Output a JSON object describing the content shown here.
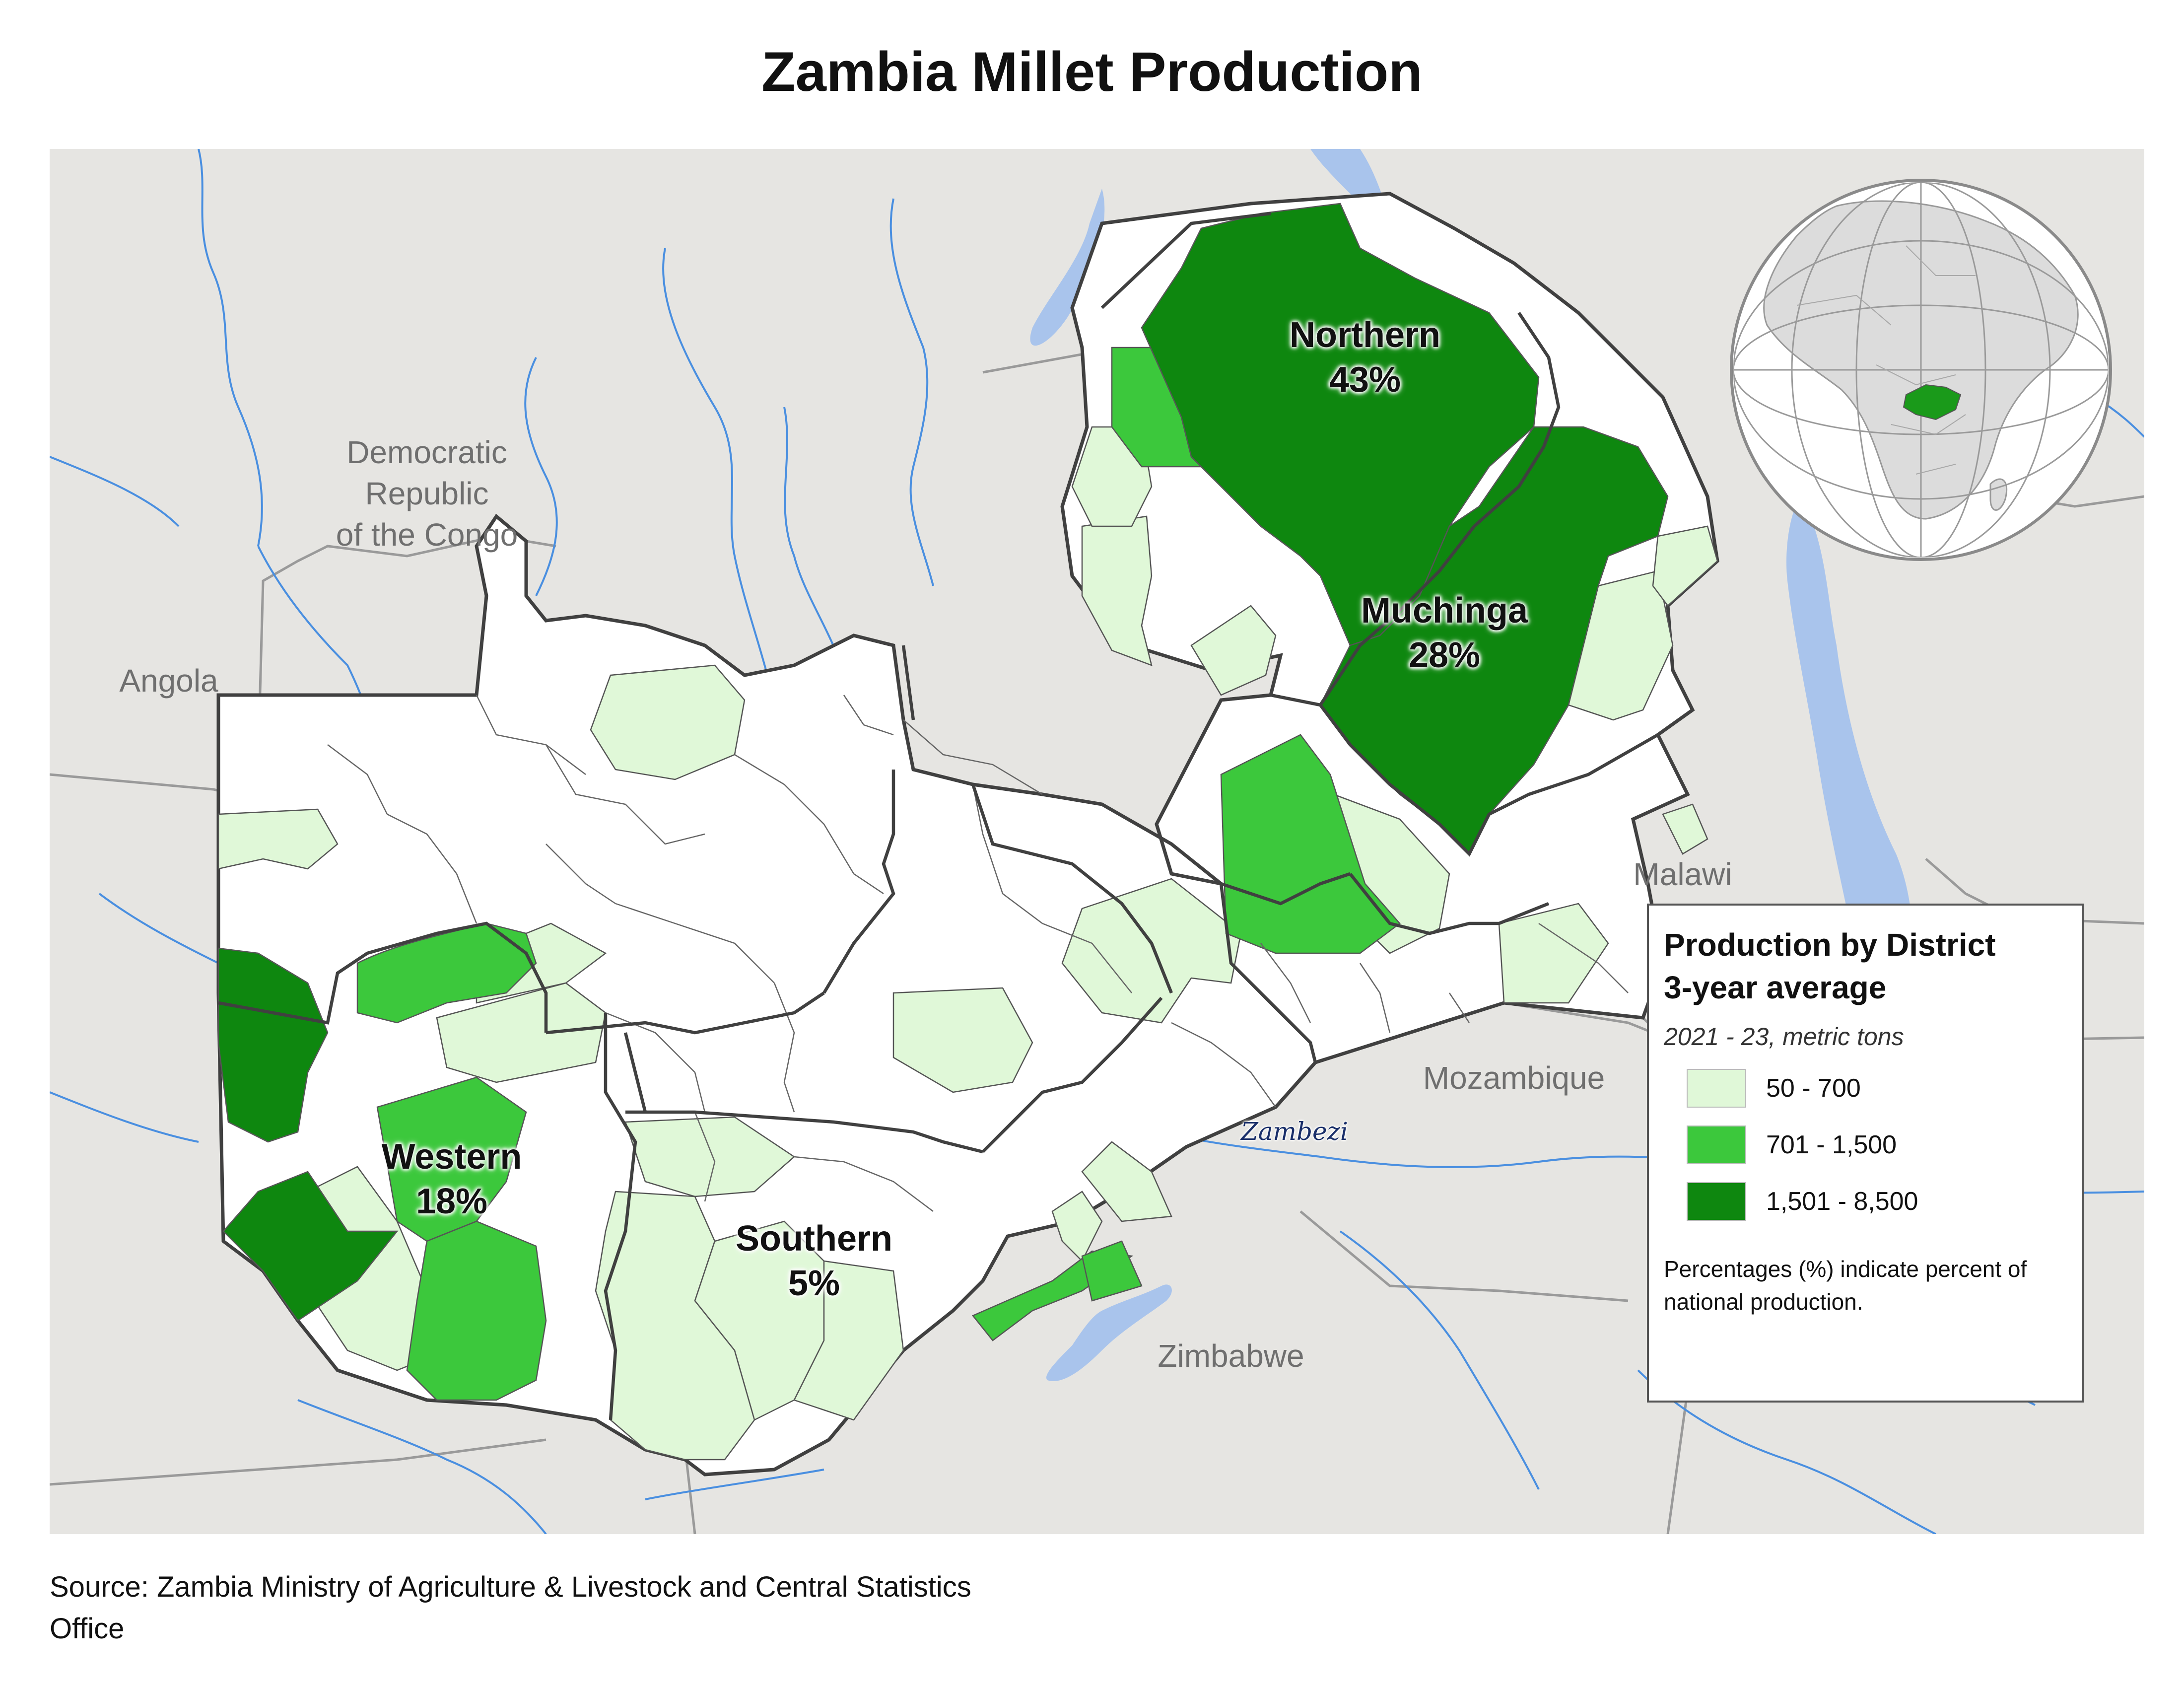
{
  "title": "Zambia Millet Production",
  "labels": {
    "countries": {
      "drc": "Democratic Republic\nof the Congo",
      "angola": "Angola",
      "malawi": "Malawi",
      "mozambique": "Mozambique",
      "zimbabwe": "Zimbabwe"
    },
    "provinces": [
      {
        "name": "Northern",
        "share": "43%"
      },
      {
        "name": "Muchinga",
        "share": "28%"
      },
      {
        "name": "Western",
        "share": "18%"
      },
      {
        "name": "Southern",
        "share": "5%"
      }
    ],
    "river": "Zambezi"
  },
  "legend": {
    "title_line1": "Production by District",
    "title_line2": "3-year average",
    "subtitle": "2021 - 23, metric tons",
    "classes": [
      {
        "label": "50 - 700",
        "color": "#e0f8d8"
      },
      {
        "label": "701 - 1,500",
        "color": "#3cc83c"
      },
      {
        "label": "1,501 - 8,500",
        "color": "#0e870f"
      }
    ],
    "note": "Percentages (%) indicate percent of national production."
  },
  "source": "Source: Zambia Ministry of Agriculture & Livestock and Central Statistics Office",
  "colors": {
    "background_land": "#e6e5e2",
    "water": "#a9c4ec",
    "river": "#4a8fe0",
    "zambia_white": "#ffffff",
    "border_dark": "#404040"
  }
}
